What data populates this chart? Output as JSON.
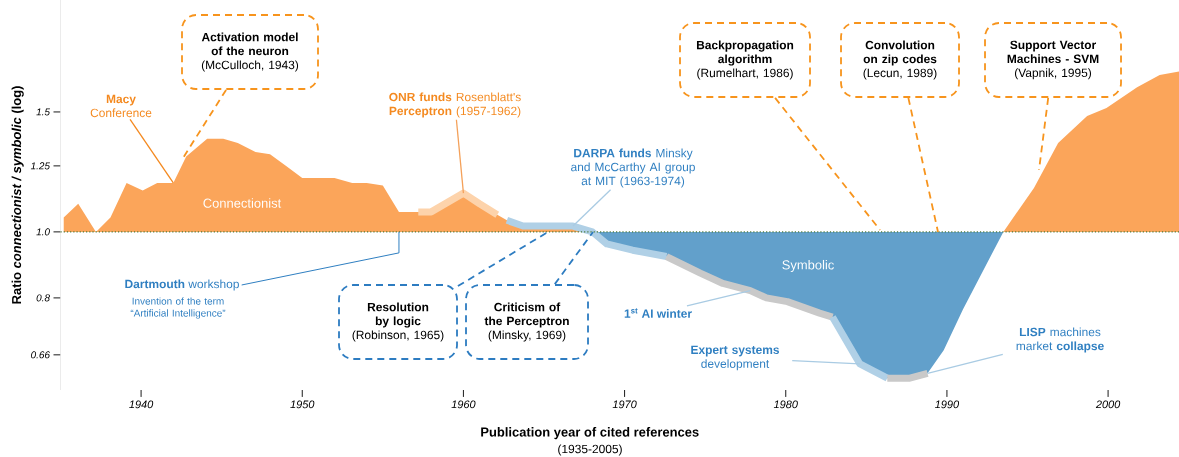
{
  "chart_data": {
    "type": "area",
    "xlabel": "Publication year of cited references",
    "ylabel": "Ratio *connectionist / symbolic* (log)",
    "log": "y",
    "xlim": [
      1935,
      2004.4
    ],
    "ylim": [
      0.586,
      2.19
    ],
    "xticks": [
      1940,
      1950,
      1960,
      1970,
      1980,
      1990,
      2000
    ],
    "yticks": [
      0.66,
      0.8,
      {
        "value": 1,
        "label": "1.0"
      },
      1.25,
      1.5
    ],
    "legend": false,
    "series": [
      {
        "name": "Connectionist",
        "color": "#fba55a",
        "x": [
          1935.2,
          1936.1,
          1937.2,
          1938.1,
          1939.1,
          1940.1,
          1941,
          1942,
          1942.8,
          1944.1,
          1945.1,
          1946,
          1947.1,
          1948,
          1949,
          1950,
          1952,
          1953.1,
          1954,
          1955,
          1956,
          1957.2,
          1958,
          1960,
          1961,
          1962.1,
          1962.7,
          1963.7,
          1966.8,
          1968
        ],
        "values": [
          1.05,
          1.1,
          1.0,
          1.05,
          1.18,
          1.15,
          1.18,
          1.18,
          1.29,
          1.37,
          1.37,
          1.35,
          1.31,
          1.3,
          1.25,
          1.2,
          1.2,
          1.18,
          1.18,
          1.17,
          1.07,
          1.07,
          1.07,
          1.14,
          1.1,
          1.06,
          1.04,
          1.02,
          1.02,
          1.0
        ]
      },
      {
        "name": "Symbolic",
        "color": "#62a0cb",
        "x": [
          1968,
          1968.9,
          1970.5,
          1972.6,
          1974.7,
          1976.1,
          1977.8,
          1978.8,
          1980.1,
          1982.1,
          1982.9,
          1984.6,
          1986.3,
          1987.7,
          1988.8,
          1989.8,
          1991,
          1993.5
        ],
        "values": [
          1.0,
          0.96,
          0.94,
          0.92,
          0.87,
          0.84,
          0.82,
          0.8,
          0.79,
          0.76,
          0.75,
          0.64,
          0.61,
          0.61,
          0.62,
          0.67,
          0.77,
          1.0
        ]
      },
      {
        "color": "#fba55a",
        "x": [
          1993.5,
          1995.4,
          1996.9,
          1998.7,
          1999.9,
          2001.8,
          2003.2,
          2004.4
        ],
        "values": [
          1.0,
          1.16,
          1.35,
          1.48,
          1.52,
          1.63,
          1.7,
          1.72
        ]
      },
      {
        "type": "line",
        "color": "#b0d0e6",
        "x": [
          1962.7,
          1963.7,
          1966.8,
          1968,
          1968.9,
          1970.5,
          1972.6
        ],
        "values": [
          1.04,
          1.02,
          1.02,
          1.0,
          0.96,
          0.94,
          0.92
        ]
      }
    ],
    "ref_lines": [
      {
        "axis": "y",
        "value": 1,
        "color": "#4d7a3a",
        "line_style": "dotted"
      }
    ],
    "annotations": [
      {
        "text": "**Macy** Conference",
        "x": 1942,
        "y": 1.18
      },
      "**Activation model of the neuron** (McCulloch, 1943)",
      {
        "text": "**Dartmouth** workshop",
        "x": 1956,
        "y": 1.0
      },
      "Invention of the term “Artificial Intelligence”",
      "**Resolution by logic** (Robinson, 1965)",
      "**Criticism of the Perceptron** (Minsky, 1969)",
      "**Backpropagation algorithm** (Rumelhart, 1986)",
      "**Convolution on zip codes** (Lecun, 1989)",
      "**Support Vector Machines - SVM** (Vapnik, 1995)",
      "(1935-2005)",
      {
        "text": "**ONR funds** Rosenblatt's **Perceptron** (1957-1962)",
        "x": 1960,
        "y": 1.14
      },
      {
        "text": "**DARPA funds** Minsky and McCarthy AI group at MIT (1963-1974)",
        "x": 1966.8,
        "y": 1.02
      },
      {
        "text": "1$^{st}$ AI winter",
        "x": 1977.8,
        "y": 0.82
      },
      {
        "text": "**Expert systems** development",
        "x": 1984.6,
        "y": 0.64
      },
      {
        "text": "**LISP** machines market **collapse**",
        "x": 1988.8,
        "y": 0.62
      }
    ]
  }
}
